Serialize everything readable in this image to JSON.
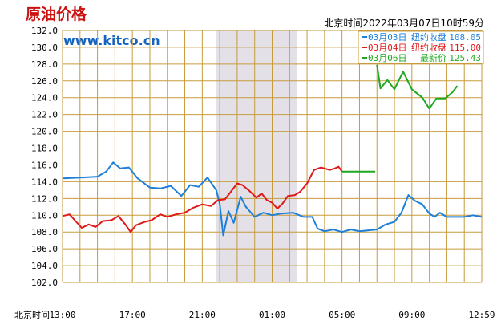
{
  "header": {
    "title": "原油价格",
    "site": "www.kitco.cn",
    "timestamp": "北京时间2022年03月07日10时59分"
  },
  "legend": [
    {
      "date": "03月03日",
      "label": "纽约收盘",
      "value": "108.05",
      "color": "#1e7fd9"
    },
    {
      "date": "03月04日",
      "label": "纽约收盘",
      "value": "115.00",
      "color": "#e01818"
    },
    {
      "date": "03月06日",
      "label": "最新价",
      "value": "125.43",
      "color": "#1fa81f"
    }
  ],
  "chart_data": {
    "type": "line",
    "ylim": [
      102.0,
      132.0
    ],
    "yticks": [
      "132.0",
      "130.0",
      "128.0",
      "126.0",
      "124.0",
      "122.0",
      "120.0",
      "118.0",
      "116.0",
      "114.0",
      "112.0",
      "110.0",
      "108.0",
      "106.0",
      "104.0",
      "102.0"
    ],
    "xlim": [
      0,
      24
    ],
    "x_unit_note": "hours from 13:00",
    "xticks": [
      {
        "label": "北京时间",
        "x": null
      },
      {
        "label": "13:00",
        "x": 0
      },
      {
        "label": "17:00",
        "x": 4
      },
      {
        "label": "21:00",
        "x": 8
      },
      {
        "label": "01:00",
        "x": 12
      },
      {
        "label": "05:00",
        "x": 16
      },
      {
        "label": "09:00",
        "x": 20
      },
      {
        "label": "12:59",
        "x": 24
      }
    ],
    "shaded_region": [
      8.8,
      13.4
    ],
    "grid": true,
    "series": [
      {
        "name": "03月03日",
        "color": "#1e7fd9",
        "points": [
          [
            0,
            114.4
          ],
          [
            1,
            114.5
          ],
          [
            2,
            114.6
          ],
          [
            2.5,
            115.2
          ],
          [
            2.9,
            116.3
          ],
          [
            3.3,
            115.6
          ],
          [
            3.8,
            115.7
          ],
          [
            4.3,
            114.4
          ],
          [
            5.0,
            113.3
          ],
          [
            5.6,
            113.2
          ],
          [
            6.2,
            113.5
          ],
          [
            6.8,
            112.3
          ],
          [
            7.3,
            113.6
          ],
          [
            7.8,
            113.4
          ],
          [
            8.3,
            114.5
          ],
          [
            8.8,
            113.0
          ],
          [
            9.0,
            111.4
          ],
          [
            9.2,
            107.6
          ],
          [
            9.5,
            110.5
          ],
          [
            9.8,
            109.1
          ],
          [
            10.2,
            112.2
          ],
          [
            10.5,
            111.0
          ],
          [
            11.0,
            109.8
          ],
          [
            11.5,
            110.3
          ],
          [
            12.0,
            110.0
          ],
          [
            12.5,
            110.2
          ],
          [
            13.2,
            110.3
          ],
          [
            13.8,
            109.8
          ],
          [
            14.3,
            109.8
          ],
          [
            14.6,
            108.4
          ],
          [
            15.0,
            108.1
          ],
          [
            15.5,
            108.3
          ],
          [
            16.0,
            108.0
          ],
          [
            16.5,
            108.3
          ],
          [
            17.0,
            108.1
          ],
          [
            17.5,
            108.2
          ],
          [
            18.0,
            108.3
          ],
          [
            18.5,
            108.9
          ],
          [
            19.0,
            109.2
          ],
          [
            19.4,
            110.3
          ],
          [
            19.8,
            112.4
          ],
          [
            20.2,
            111.7
          ],
          [
            20.6,
            111.3
          ],
          [
            21.0,
            110.2
          ],
          [
            21.3,
            109.8
          ],
          [
            21.6,
            110.3
          ],
          [
            22.0,
            109.8
          ],
          [
            22.5,
            109.8
          ],
          [
            23.0,
            109.8
          ],
          [
            23.5,
            110.0
          ],
          [
            24.0,
            109.8
          ]
        ]
      },
      {
        "name": "03月04日",
        "color": "#e01818",
        "points": [
          [
            0,
            109.9
          ],
          [
            0.4,
            110.1
          ],
          [
            0.7,
            109.4
          ],
          [
            1.1,
            108.5
          ],
          [
            1.5,
            108.9
          ],
          [
            1.9,
            108.6
          ],
          [
            2.3,
            109.3
          ],
          [
            2.8,
            109.4
          ],
          [
            3.2,
            109.9
          ],
          [
            3.6,
            108.9
          ],
          [
            3.9,
            108.0
          ],
          [
            4.2,
            108.8
          ],
          [
            4.7,
            109.2
          ],
          [
            5.1,
            109.4
          ],
          [
            5.6,
            110.1
          ],
          [
            6.0,
            109.8
          ],
          [
            6.5,
            110.1
          ],
          [
            7.0,
            110.3
          ],
          [
            7.5,
            110.9
          ],
          [
            8.0,
            111.3
          ],
          [
            8.5,
            111.1
          ],
          [
            8.9,
            111.8
          ],
          [
            9.3,
            111.9
          ],
          [
            9.6,
            112.7
          ],
          [
            10.0,
            113.8
          ],
          [
            10.3,
            113.6
          ],
          [
            10.7,
            112.9
          ],
          [
            11.1,
            112.1
          ],
          [
            11.4,
            112.6
          ],
          [
            11.7,
            111.8
          ],
          [
            12.0,
            111.5
          ],
          [
            12.3,
            110.8
          ],
          [
            12.6,
            111.4
          ],
          [
            12.9,
            112.3
          ],
          [
            13.3,
            112.4
          ],
          [
            13.6,
            112.8
          ],
          [
            14.0,
            113.8
          ],
          [
            14.4,
            115.4
          ],
          [
            14.8,
            115.7
          ],
          [
            15.3,
            115.4
          ],
          [
            15.6,
            115.6
          ],
          [
            15.8,
            115.8
          ],
          [
            16.0,
            115.2
          ]
        ]
      },
      {
        "name": "03月06日",
        "color": "#1fa81f",
        "points": [
          [
            16.0,
            115.2
          ],
          [
            17.0,
            115.2
          ],
          [
            17.9,
            115.2
          ]
        ],
        "points_b": [
          [
            18.0,
            127.9
          ],
          [
            18.2,
            125.1
          ],
          [
            18.6,
            126.1
          ],
          [
            19.0,
            125.0
          ],
          [
            19.5,
            127.1
          ],
          [
            20.0,
            125.0
          ],
          [
            20.6,
            124.0
          ],
          [
            21.0,
            122.7
          ],
          [
            21.4,
            123.9
          ],
          [
            21.9,
            123.9
          ],
          [
            22.3,
            124.6
          ],
          [
            22.6,
            125.4
          ]
        ]
      }
    ]
  }
}
